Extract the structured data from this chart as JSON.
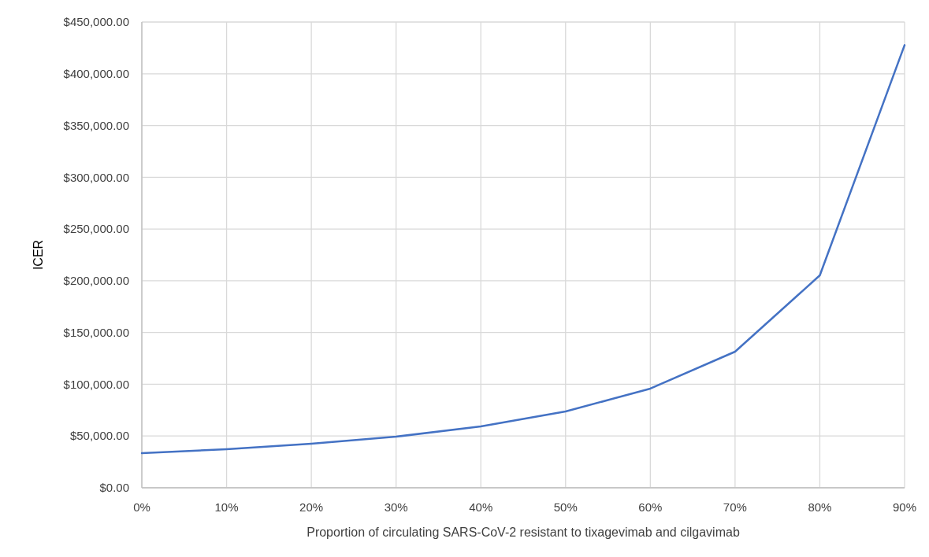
{
  "chart_data": {
    "type": "line",
    "xlabel": "Proportion of circulating SARS-CoV-2 resistant to tixagevimab and cilgavimab",
    "ylabel": "ICER",
    "x": [
      0,
      10,
      20,
      30,
      40,
      50,
      60,
      70,
      80,
      90
    ],
    "series": [
      {
        "color": "#4472c4",
        "values": [
          33500,
          37200,
          42500,
          49400,
          59300,
          73700,
          95800,
          131500,
          205200,
          427700
        ]
      }
    ],
    "xlim": [
      0,
      90
    ],
    "xticks": [
      {
        "value": 0,
        "label": "0%"
      },
      {
        "value": 10,
        "label": "10%"
      },
      {
        "value": 20,
        "label": "20%"
      },
      {
        "value": 30,
        "label": "30%"
      },
      {
        "value": 40,
        "label": "40%"
      },
      {
        "value": 50,
        "label": "50%"
      },
      {
        "value": 60,
        "label": "60%"
      },
      {
        "value": 70,
        "label": "70%"
      },
      {
        "value": 80,
        "label": "80%"
      },
      {
        "value": 90,
        "label": "90%"
      }
    ],
    "ylim": [
      0,
      450000
    ],
    "yticks": [
      {
        "value": 0,
        "label": "$0.00"
      },
      {
        "value": 50000,
        "label": "$50,000.00"
      },
      {
        "value": 100000,
        "label": "$100,000.00"
      },
      {
        "value": 150000,
        "label": "$150,000.00"
      },
      {
        "value": 200000,
        "label": "$200,000.00"
      },
      {
        "value": 250000,
        "label": "$250,000.00"
      },
      {
        "value": 300000,
        "label": "$300,000.00"
      },
      {
        "value": 350000,
        "label": "$350,000.00"
      },
      {
        "value": 400000,
        "label": "$400,000.00"
      },
      {
        "value": 450000,
        "label": "$450,000.00"
      }
    ],
    "grid": true,
    "marker": "none",
    "line_style": "solid"
  }
}
